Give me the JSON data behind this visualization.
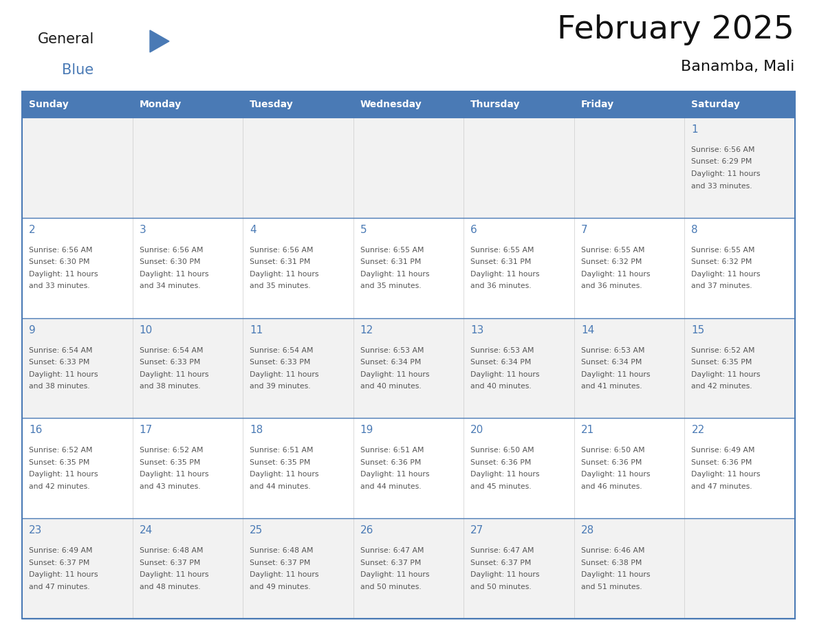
{
  "title": "February 2025",
  "subtitle": "Banamba, Mali",
  "days_of_week": [
    "Sunday",
    "Monday",
    "Tuesday",
    "Wednesday",
    "Thursday",
    "Friday",
    "Saturday"
  ],
  "header_bg": "#4a7ab5",
  "header_text": "#ffffff",
  "row_bg_odd": "#f2f2f2",
  "row_bg_even": "#ffffff",
  "day_number_color": "#4a7ab5",
  "text_color": "#555555",
  "border_color": "#4a7ab5",
  "logo_general_color": "#1a1a1a",
  "logo_blue_color": "#4a7ab5",
  "logo_triangle_color": "#4a7ab5",
  "calendar_data": [
    [
      null,
      null,
      null,
      null,
      null,
      null,
      {
        "day": 1,
        "sunrise": "6:56 AM",
        "sunset": "6:29 PM",
        "daylight_line1": "11 hours",
        "daylight_line2": "and 33 minutes."
      }
    ],
    [
      {
        "day": 2,
        "sunrise": "6:56 AM",
        "sunset": "6:30 PM",
        "daylight_line1": "11 hours",
        "daylight_line2": "and 33 minutes."
      },
      {
        "day": 3,
        "sunrise": "6:56 AM",
        "sunset": "6:30 PM",
        "daylight_line1": "11 hours",
        "daylight_line2": "and 34 minutes."
      },
      {
        "day": 4,
        "sunrise": "6:56 AM",
        "sunset": "6:31 PM",
        "daylight_line1": "11 hours",
        "daylight_line2": "and 35 minutes."
      },
      {
        "day": 5,
        "sunrise": "6:55 AM",
        "sunset": "6:31 PM",
        "daylight_line1": "11 hours",
        "daylight_line2": "and 35 minutes."
      },
      {
        "day": 6,
        "sunrise": "6:55 AM",
        "sunset": "6:31 PM",
        "daylight_line1": "11 hours",
        "daylight_line2": "and 36 minutes."
      },
      {
        "day": 7,
        "sunrise": "6:55 AM",
        "sunset": "6:32 PM",
        "daylight_line1": "11 hours",
        "daylight_line2": "and 36 minutes."
      },
      {
        "day": 8,
        "sunrise": "6:55 AM",
        "sunset": "6:32 PM",
        "daylight_line1": "11 hours",
        "daylight_line2": "and 37 minutes."
      }
    ],
    [
      {
        "day": 9,
        "sunrise": "6:54 AM",
        "sunset": "6:33 PM",
        "daylight_line1": "11 hours",
        "daylight_line2": "and 38 minutes."
      },
      {
        "day": 10,
        "sunrise": "6:54 AM",
        "sunset": "6:33 PM",
        "daylight_line1": "11 hours",
        "daylight_line2": "and 38 minutes."
      },
      {
        "day": 11,
        "sunrise": "6:54 AM",
        "sunset": "6:33 PM",
        "daylight_line1": "11 hours",
        "daylight_line2": "and 39 minutes."
      },
      {
        "day": 12,
        "sunrise": "6:53 AM",
        "sunset": "6:34 PM",
        "daylight_line1": "11 hours",
        "daylight_line2": "and 40 minutes."
      },
      {
        "day": 13,
        "sunrise": "6:53 AM",
        "sunset": "6:34 PM",
        "daylight_line1": "11 hours",
        "daylight_line2": "and 40 minutes."
      },
      {
        "day": 14,
        "sunrise": "6:53 AM",
        "sunset": "6:34 PM",
        "daylight_line1": "11 hours",
        "daylight_line2": "and 41 minutes."
      },
      {
        "day": 15,
        "sunrise": "6:52 AM",
        "sunset": "6:35 PM",
        "daylight_line1": "11 hours",
        "daylight_line2": "and 42 minutes."
      }
    ],
    [
      {
        "day": 16,
        "sunrise": "6:52 AM",
        "sunset": "6:35 PM",
        "daylight_line1": "11 hours",
        "daylight_line2": "and 42 minutes."
      },
      {
        "day": 17,
        "sunrise": "6:52 AM",
        "sunset": "6:35 PM",
        "daylight_line1": "11 hours",
        "daylight_line2": "and 43 minutes."
      },
      {
        "day": 18,
        "sunrise": "6:51 AM",
        "sunset": "6:35 PM",
        "daylight_line1": "11 hours",
        "daylight_line2": "and 44 minutes."
      },
      {
        "day": 19,
        "sunrise": "6:51 AM",
        "sunset": "6:36 PM",
        "daylight_line1": "11 hours",
        "daylight_line2": "and 44 minutes."
      },
      {
        "day": 20,
        "sunrise": "6:50 AM",
        "sunset": "6:36 PM",
        "daylight_line1": "11 hours",
        "daylight_line2": "and 45 minutes."
      },
      {
        "day": 21,
        "sunrise": "6:50 AM",
        "sunset": "6:36 PM",
        "daylight_line1": "11 hours",
        "daylight_line2": "and 46 minutes."
      },
      {
        "day": 22,
        "sunrise": "6:49 AM",
        "sunset": "6:36 PM",
        "daylight_line1": "11 hours",
        "daylight_line2": "and 47 minutes."
      }
    ],
    [
      {
        "day": 23,
        "sunrise": "6:49 AM",
        "sunset": "6:37 PM",
        "daylight_line1": "11 hours",
        "daylight_line2": "and 47 minutes."
      },
      {
        "day": 24,
        "sunrise": "6:48 AM",
        "sunset": "6:37 PM",
        "daylight_line1": "11 hours",
        "daylight_line2": "and 48 minutes."
      },
      {
        "day": 25,
        "sunrise": "6:48 AM",
        "sunset": "6:37 PM",
        "daylight_line1": "11 hours",
        "daylight_line2": "and 49 minutes."
      },
      {
        "day": 26,
        "sunrise": "6:47 AM",
        "sunset": "6:37 PM",
        "daylight_line1": "11 hours",
        "daylight_line2": "and 50 minutes."
      },
      {
        "day": 27,
        "sunrise": "6:47 AM",
        "sunset": "6:37 PM",
        "daylight_line1": "11 hours",
        "daylight_line2": "and 50 minutes."
      },
      {
        "day": 28,
        "sunrise": "6:46 AM",
        "sunset": "6:38 PM",
        "daylight_line1": "11 hours",
        "daylight_line2": "and 51 minutes."
      },
      null
    ]
  ]
}
